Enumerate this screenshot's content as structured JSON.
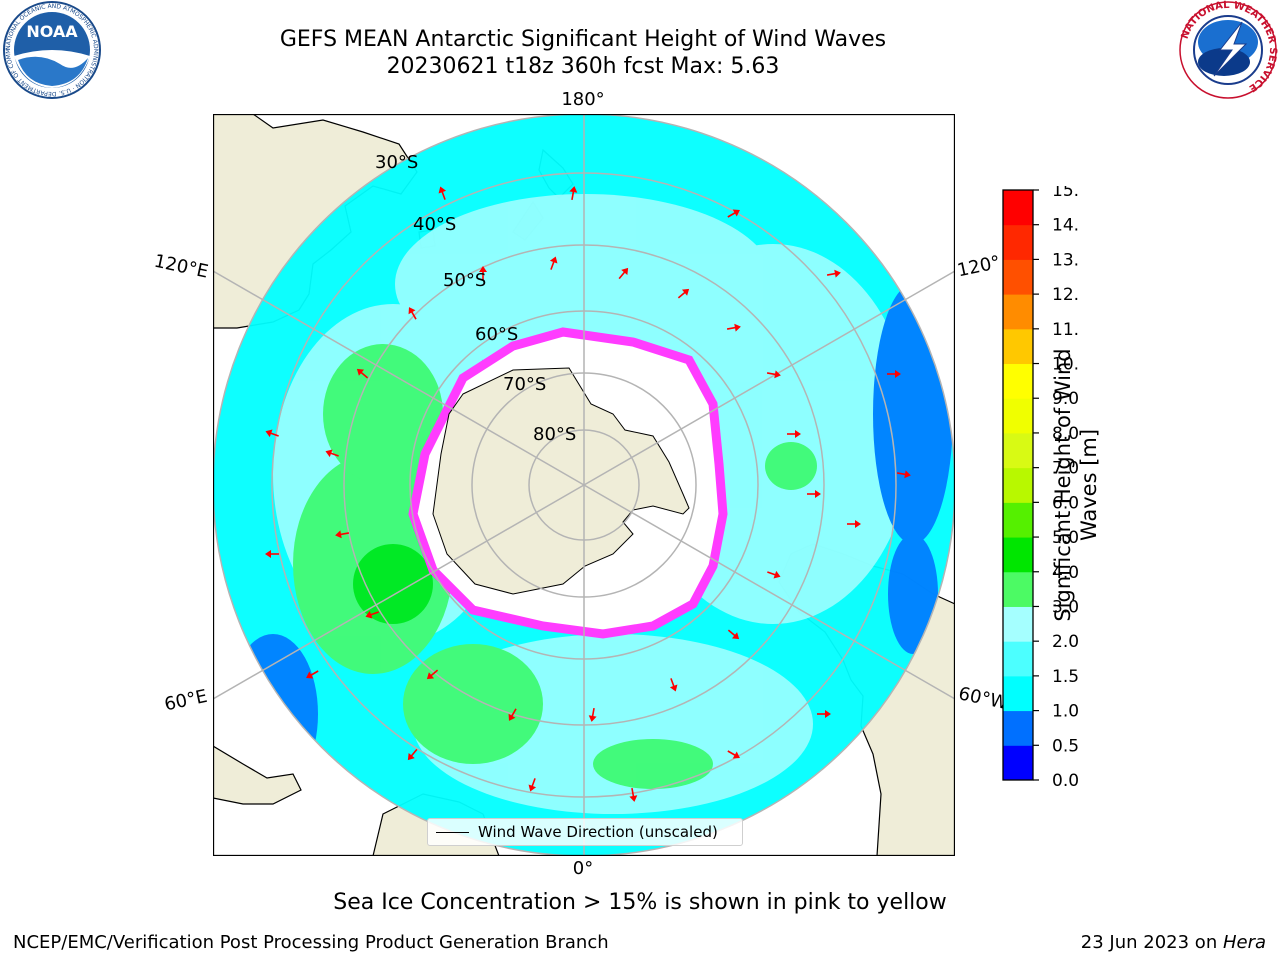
{
  "title": {
    "line1": "GEFS MEAN Antarctic Significant Height of Wind Waves",
    "line2": "20230621 t18z 360h fcst   Max: 5.63"
  },
  "logos": {
    "noaa": {
      "text": "NOAA",
      "ring_text": "NATIONAL OCEANIC AND ATMOSPHERIC ADMINISTRATION · U.S. DEPARTMENT OF COMMERCE",
      "icon": "noaa-logo"
    },
    "nws": {
      "ring_text": "NATIONAL WEATHER SERVICE",
      "icon": "nws-logo"
    }
  },
  "map": {
    "projection": "south-polar-stereographic",
    "meridian_labels": {
      "top": "180°",
      "bottom": "0°",
      "upper_left": "120°E",
      "lower_left": "60°E",
      "upper_right": "120°",
      "lower_right": "60°W"
    },
    "latitude_labels": [
      "30°S",
      "40°S",
      "50°S",
      "60°S",
      "70°S",
      "80°S"
    ],
    "colors": {
      "land": "#efedd8",
      "ice": "#ffffff",
      "ocean_low": "#00ffff",
      "ocean_mid": "#a5ffff",
      "ocean_high": "#4cfa64",
      "deep": "#0070ff",
      "ice_edge": "#ff3cff",
      "arrow": "#ff0000",
      "grid": "#b4b4b4"
    }
  },
  "legend": {
    "label": "Wind Wave Direction (unscaled)"
  },
  "colorbar": {
    "label_line1": "Significant Height of Wind",
    "label_line2": "Waves [m]",
    "ticks": [
      "0.0",
      "0.5",
      "1.0",
      "1.5",
      "2.0",
      "3.0",
      "4.0",
      "5.0",
      "6.0",
      "7.0",
      "8.0",
      "9.0",
      "10.0",
      "11.0",
      "12.0",
      "13.0",
      "14.0",
      "15.0"
    ],
    "colors": [
      "#0000ff",
      "#0070ff",
      "#00ffff",
      "#4cffff",
      "#a5ffff",
      "#4cfa64",
      "#00e600",
      "#55f000",
      "#b8f800",
      "#d8fa14",
      "#f0ff00",
      "#ffff00",
      "#ffc800",
      "#ff8c00",
      "#ff5000",
      "#ff2800",
      "#ff0000"
    ]
  },
  "note": "Sea Ice Concentration > 15% is shown in pink to yellow",
  "footer": {
    "left": "NCEP/EMC/Verification Post Processing Product Generation Branch",
    "date": "23 Jun 2023 on ",
    "system": "Hera"
  }
}
